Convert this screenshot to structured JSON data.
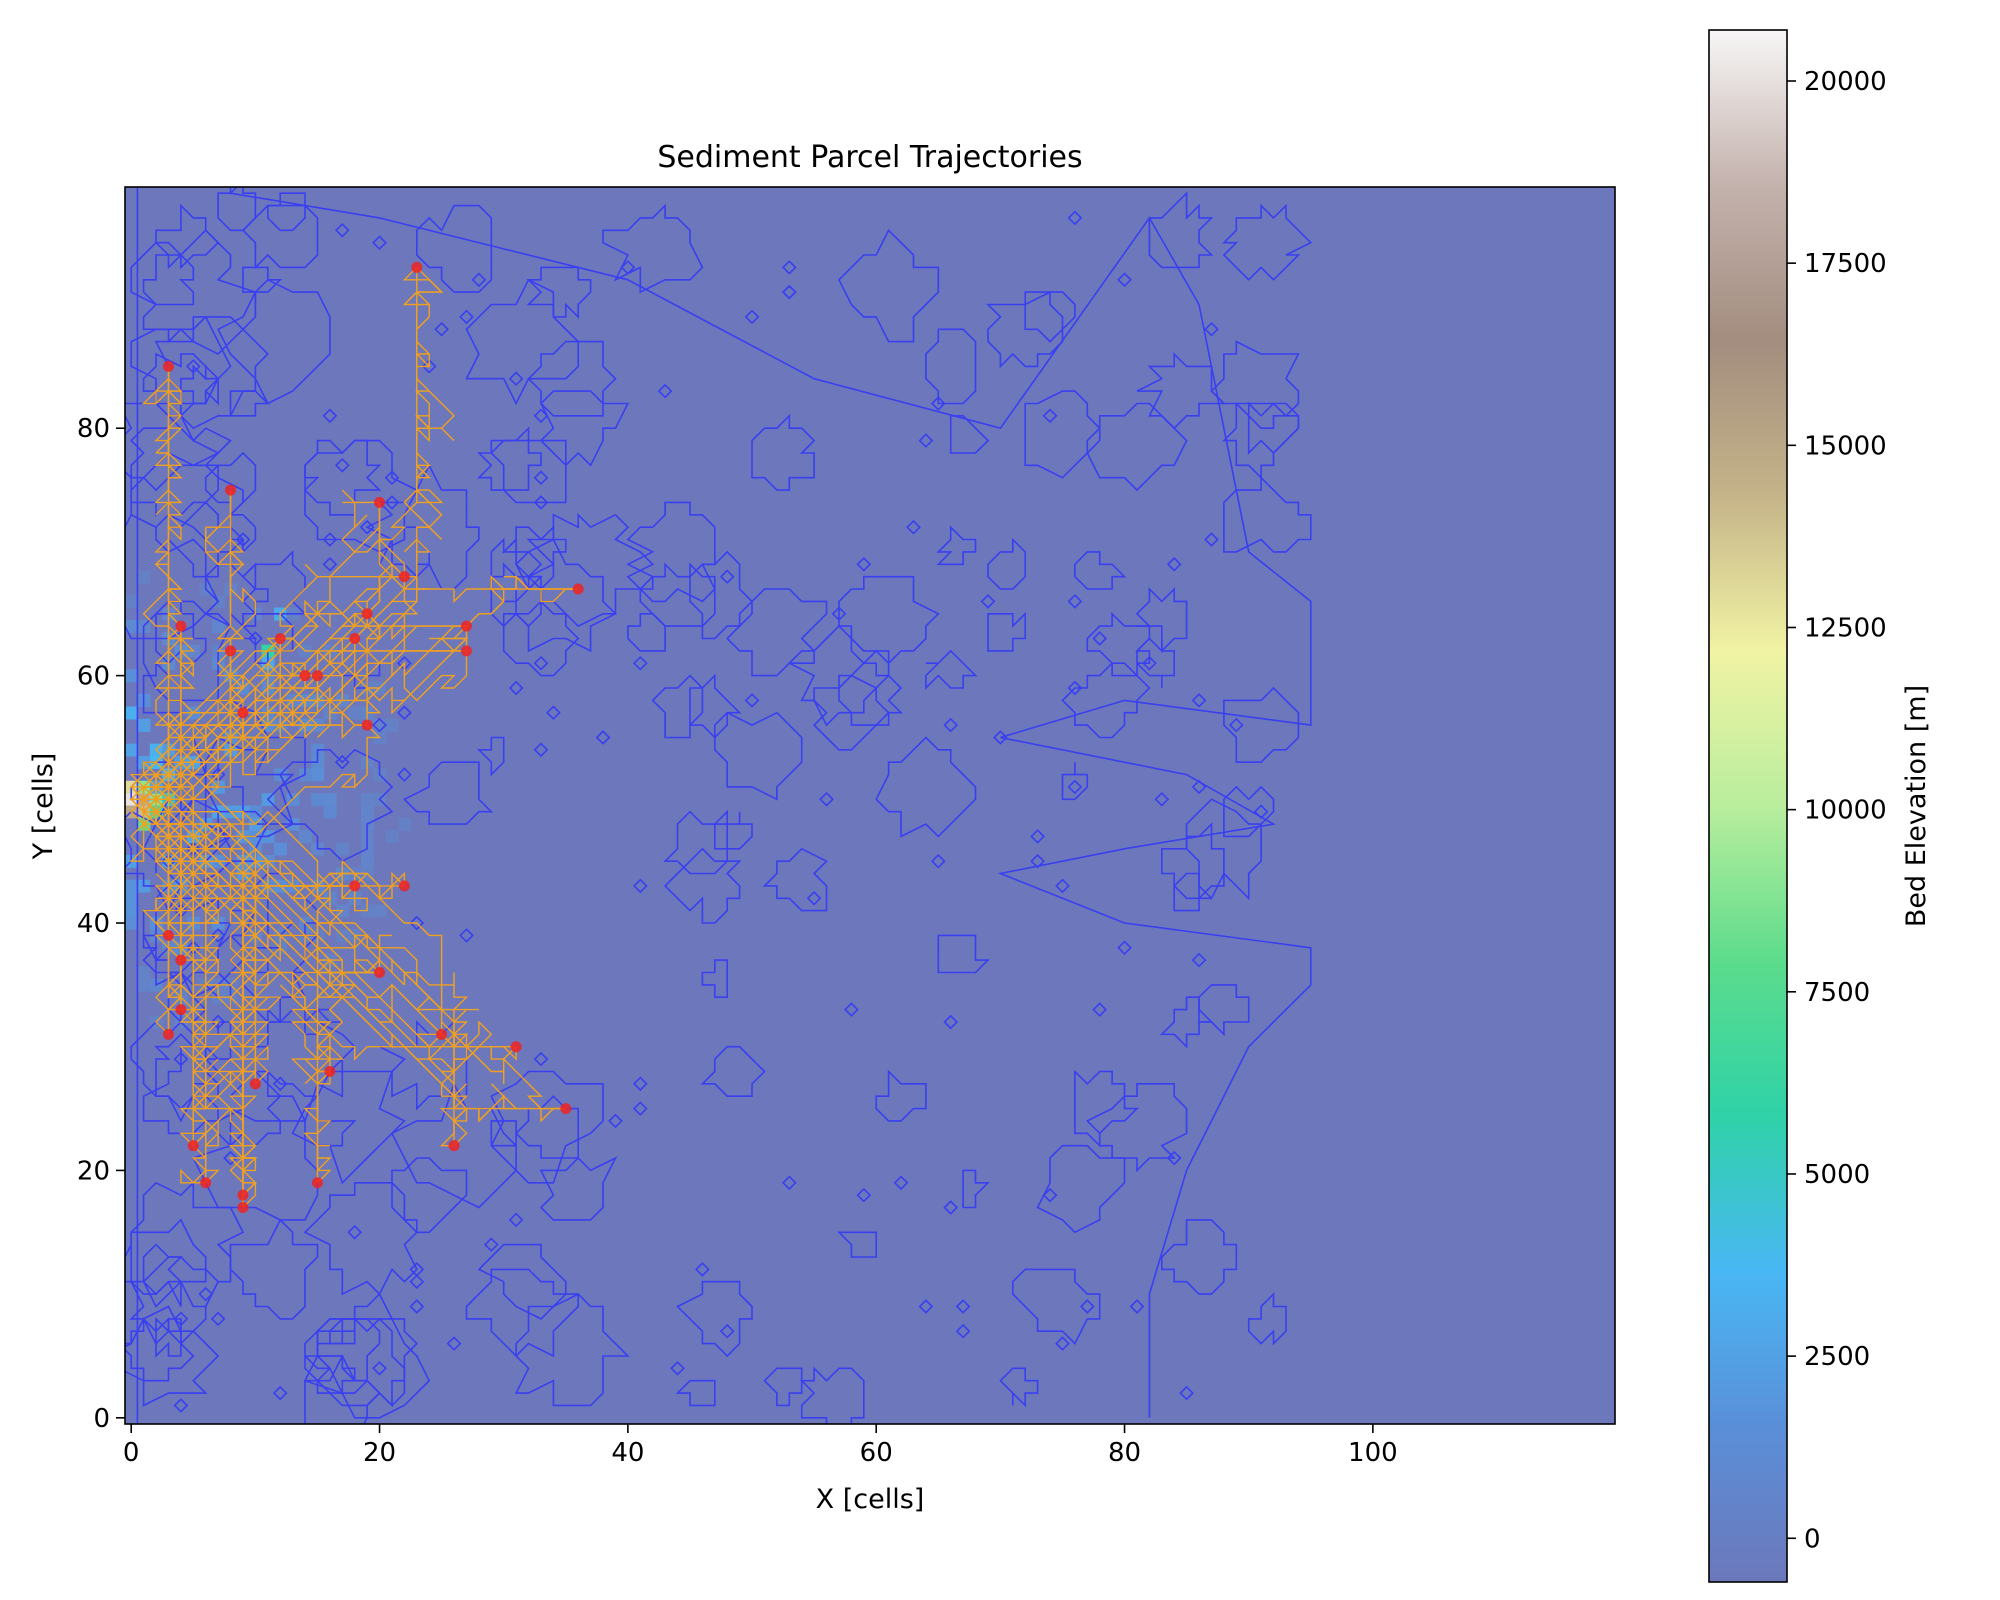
{
  "chart_data": {
    "type": "heatmap",
    "title": "Sediment Parcel Trajectories",
    "xlabel": "X [cells]",
    "ylabel": "Y [cells]",
    "xlim": [
      -0.5,
      119.5
    ],
    "ylim": [
      -0.5,
      99.5
    ],
    "x_ticks": [
      0,
      20,
      40,
      60,
      80,
      100
    ],
    "y_ticks": [
      0,
      20,
      40,
      60,
      80
    ],
    "grid": false,
    "colorbar": {
      "label": "Bed Elevation [m]",
      "vmin": -600,
      "vmax": 20700,
      "ticks": [
        0,
        2500,
        5000,
        7500,
        10000,
        12500,
        15000,
        17500,
        20000
      ],
      "colormap": "terrain",
      "stops": [
        "#6c78bb",
        "#5a8fd8",
        "#49b7f4",
        "#2fd2a8",
        "#5cdc8c",
        "#b9ee9d",
        "#f1f3a4",
        "#c5b489",
        "#a38d7f",
        "#c4b2ad",
        "#f7f6f6"
      ]
    },
    "background_color": "#6c78bb",
    "contour_color": "#3a3ff0",
    "trajectory_color": "#f0a020",
    "endpoint_color": "#ee2222",
    "source": {
      "x": 1,
      "y": 50
    },
    "parcel_endpoints": [
      {
        "x": 23,
        "y": 93
      },
      {
        "x": 3,
        "y": 85
      },
      {
        "x": 8,
        "y": 75
      },
      {
        "x": 20,
        "y": 74
      },
      {
        "x": 22,
        "y": 68
      },
      {
        "x": 36,
        "y": 67
      },
      {
        "x": 19,
        "y": 65
      },
      {
        "x": 4,
        "y": 64
      },
      {
        "x": 27,
        "y": 64
      },
      {
        "x": 18,
        "y": 63
      },
      {
        "x": 12,
        "y": 63
      },
      {
        "x": 27,
        "y": 62
      },
      {
        "x": 8,
        "y": 62
      },
      {
        "x": 14,
        "y": 60
      },
      {
        "x": 15,
        "y": 60
      },
      {
        "x": 9,
        "y": 57
      },
      {
        "x": 19,
        "y": 56
      },
      {
        "x": 22,
        "y": 43
      },
      {
        "x": 18,
        "y": 43
      },
      {
        "x": 3,
        "y": 39
      },
      {
        "x": 4,
        "y": 37
      },
      {
        "x": 20,
        "y": 36
      },
      {
        "x": 4,
        "y": 33
      },
      {
        "x": 25,
        "y": 31
      },
      {
        "x": 3,
        "y": 31
      },
      {
        "x": 31,
        "y": 30
      },
      {
        "x": 16,
        "y": 28
      },
      {
        "x": 10,
        "y": 27
      },
      {
        "x": 35,
        "y": 25
      },
      {
        "x": 5,
        "y": 22
      },
      {
        "x": 26,
        "y": 22
      },
      {
        "x": 6,
        "y": 19
      },
      {
        "x": 15,
        "y": 19
      },
      {
        "x": 9,
        "y": 18
      },
      {
        "x": 9,
        "y": 17
      }
    ],
    "elevated_cells": [
      {
        "x": 0,
        "y": 50,
        "z": 20000
      },
      {
        "x": 1,
        "y": 50,
        "z": 18000
      },
      {
        "x": 1,
        "y": 49,
        "z": 14000
      },
      {
        "x": 0,
        "y": 49,
        "z": 15000
      },
      {
        "x": 0,
        "y": 51,
        "z": 13000
      },
      {
        "x": 2,
        "y": 50,
        "z": 9000
      },
      {
        "x": 1,
        "y": 51,
        "z": 9000
      },
      {
        "x": 1,
        "y": 48,
        "z": 8000
      },
      {
        "x": 2,
        "y": 49,
        "z": 7000
      },
      {
        "x": 2,
        "y": 51,
        "z": 6000
      },
      {
        "x": 3,
        "y": 50,
        "z": 5000
      },
      {
        "x": 0,
        "y": 57,
        "z": 3200
      },
      {
        "x": 1,
        "y": 56,
        "z": 3500
      },
      {
        "x": 2,
        "y": 53,
        "z": 3800
      },
      {
        "x": 3,
        "y": 52,
        "z": 3300
      },
      {
        "x": 2,
        "y": 54,
        "z": 3300
      },
      {
        "x": 1,
        "y": 58,
        "z": 2600
      },
      {
        "x": 11,
        "y": 62,
        "z": 6000
      },
      {
        "x": 12,
        "y": 65,
        "z": 3000
      },
      {
        "x": 11,
        "y": 61,
        "z": 3000
      }
    ]
  }
}
